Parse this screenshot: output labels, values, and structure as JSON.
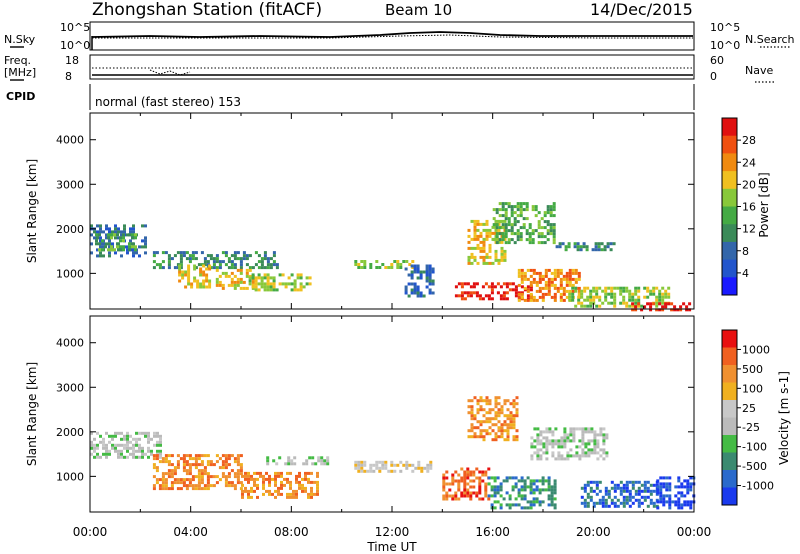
{
  "header": {
    "title": "Zhongshan Station (fitACF)",
    "beam": "Beam 10",
    "date": "14/Dec/2015"
  },
  "panels": {
    "nsky_label": "N.Sky",
    "nsearch_label": "N.Search",
    "freq_label_line1": "Freq.",
    "freq_label_line2": "[MHz]",
    "nave_label": "Nave",
    "cpid_label": "CPID",
    "cpid_value": "normal (fast stereo) 153",
    "nsky_ticks": [
      "10^5",
      "10^0"
    ],
    "nsearch_ticks": [
      "10^5",
      "10^0"
    ],
    "freq_ticks": [
      "18",
      "8"
    ],
    "nave_ticks": [
      "60",
      "0"
    ]
  },
  "chart_data": [
    {
      "type": "heatmap",
      "quantity": "Power",
      "ylabel": "Slant Range [km]",
      "ylim": [
        200,
        4600
      ],
      "yticks": [
        "1000",
        "2000",
        "3000",
        "4000"
      ],
      "colorbar_label": "Power [dB]",
      "colorbar_ticks": [
        "4",
        "8",
        "12",
        "16",
        "20",
        "24",
        "28"
      ],
      "colorbar_colors": [
        "#1a1aff",
        "#2255cc",
        "#3366aa",
        "#3a8a58",
        "#44aa44",
        "#88c83a",
        "#f0c020",
        "#f08a10",
        "#f05010",
        "#e01010"
      ],
      "regions": [
        {
          "t0": 0.0,
          "t1": 2.2,
          "r0": 1400,
          "r1": 2100,
          "level": 2
        },
        {
          "t0": 0.2,
          "t1": 1.8,
          "r0": 1550,
          "r1": 1900,
          "level": 4
        },
        {
          "t0": 2.5,
          "t1": 7.5,
          "r0": 1100,
          "r1": 1500,
          "level": 3
        },
        {
          "t0": 3.5,
          "t1": 4.8,
          "r0": 700,
          "r1": 1200,
          "level": 6
        },
        {
          "t0": 5.0,
          "t1": 6.5,
          "r0": 650,
          "r1": 1100,
          "level": 6
        },
        {
          "t0": 6.3,
          "t1": 8.8,
          "r0": 650,
          "r1": 1000,
          "level": 5
        },
        {
          "t0": 10.5,
          "t1": 12.8,
          "r0": 1100,
          "r1": 1300,
          "level": 5
        },
        {
          "t0": 12.5,
          "t1": 13.6,
          "r0": 500,
          "r1": 1200,
          "level": 2
        },
        {
          "t0": 14.5,
          "t1": 17.5,
          "r0": 400,
          "r1": 800,
          "level": 9
        },
        {
          "t0": 15.0,
          "t1": 16.5,
          "r0": 1200,
          "r1": 2200,
          "level": 6
        },
        {
          "t0": 16.0,
          "t1": 18.5,
          "r0": 1700,
          "r1": 2600,
          "level": 4
        },
        {
          "t0": 17.0,
          "t1": 19.5,
          "r0": 400,
          "r1": 1100,
          "level": 7
        },
        {
          "t0": 18.5,
          "t1": 20.8,
          "r0": 1500,
          "r1": 1700,
          "level": 3
        },
        {
          "t0": 19.0,
          "t1": 23.0,
          "r0": 250,
          "r1": 700,
          "level": 5
        },
        {
          "t0": 21.5,
          "t1": 24.0,
          "r0": 200,
          "r1": 350,
          "level": 9
        }
      ]
    },
    {
      "type": "heatmap",
      "quantity": "Velocity",
      "xlabel": "Time UT",
      "xticks": [
        "00:00",
        "04:00",
        "08:00",
        "12:00",
        "16:00",
        "20:00",
        "00:00"
      ],
      "ylabel": "Slant Range [km]",
      "ylim": [
        200,
        4600
      ],
      "yticks": [
        "1000",
        "2000",
        "3000",
        "4000"
      ],
      "colorbar_label": "Velocity [m s-1]",
      "colorbar_ticks": [
        "1000",
        "500",
        "100",
        "25",
        "-25",
        "-100",
        "-500",
        "-1000"
      ],
      "colorbar_colors": [
        "#1a3aee",
        "#2a6acc",
        "#3a8a70",
        "#44bb44",
        "#bbbbbb",
        "#c8c8c8",
        "#f0b020",
        "#f09030",
        "#f06020",
        "#e81010"
      ],
      "regions": [
        {
          "t0": 0.0,
          "t1": 2.8,
          "r0": 1400,
          "r1": 2000,
          "level": 4
        },
        {
          "t0": 2.5,
          "t1": 6.0,
          "r0": 700,
          "r1": 1500,
          "level": 7
        },
        {
          "t0": 6.0,
          "t1": 9.0,
          "r0": 500,
          "r1": 1100,
          "level": 7
        },
        {
          "t0": 7.0,
          "t1": 9.5,
          "r0": 1250,
          "r1": 1450,
          "level": 4
        },
        {
          "t0": 10.5,
          "t1": 13.5,
          "r0": 1100,
          "r1": 1350,
          "level": 5
        },
        {
          "t0": 14.0,
          "t1": 15.8,
          "r0": 500,
          "r1": 1200,
          "level": 8
        },
        {
          "t0": 15.0,
          "t1": 17.0,
          "r0": 1800,
          "r1": 2800,
          "level": 7
        },
        {
          "t0": 15.8,
          "t1": 18.5,
          "r0": 300,
          "r1": 1000,
          "level": 2
        },
        {
          "t0": 17.5,
          "t1": 20.5,
          "r0": 1400,
          "r1": 2100,
          "level": 4
        },
        {
          "t0": 19.5,
          "t1": 22.5,
          "r0": 300,
          "r1": 900,
          "level": 1
        },
        {
          "t0": 22.5,
          "t1": 24.0,
          "r0": 300,
          "r1": 1000,
          "level": 0
        }
      ]
    }
  ]
}
